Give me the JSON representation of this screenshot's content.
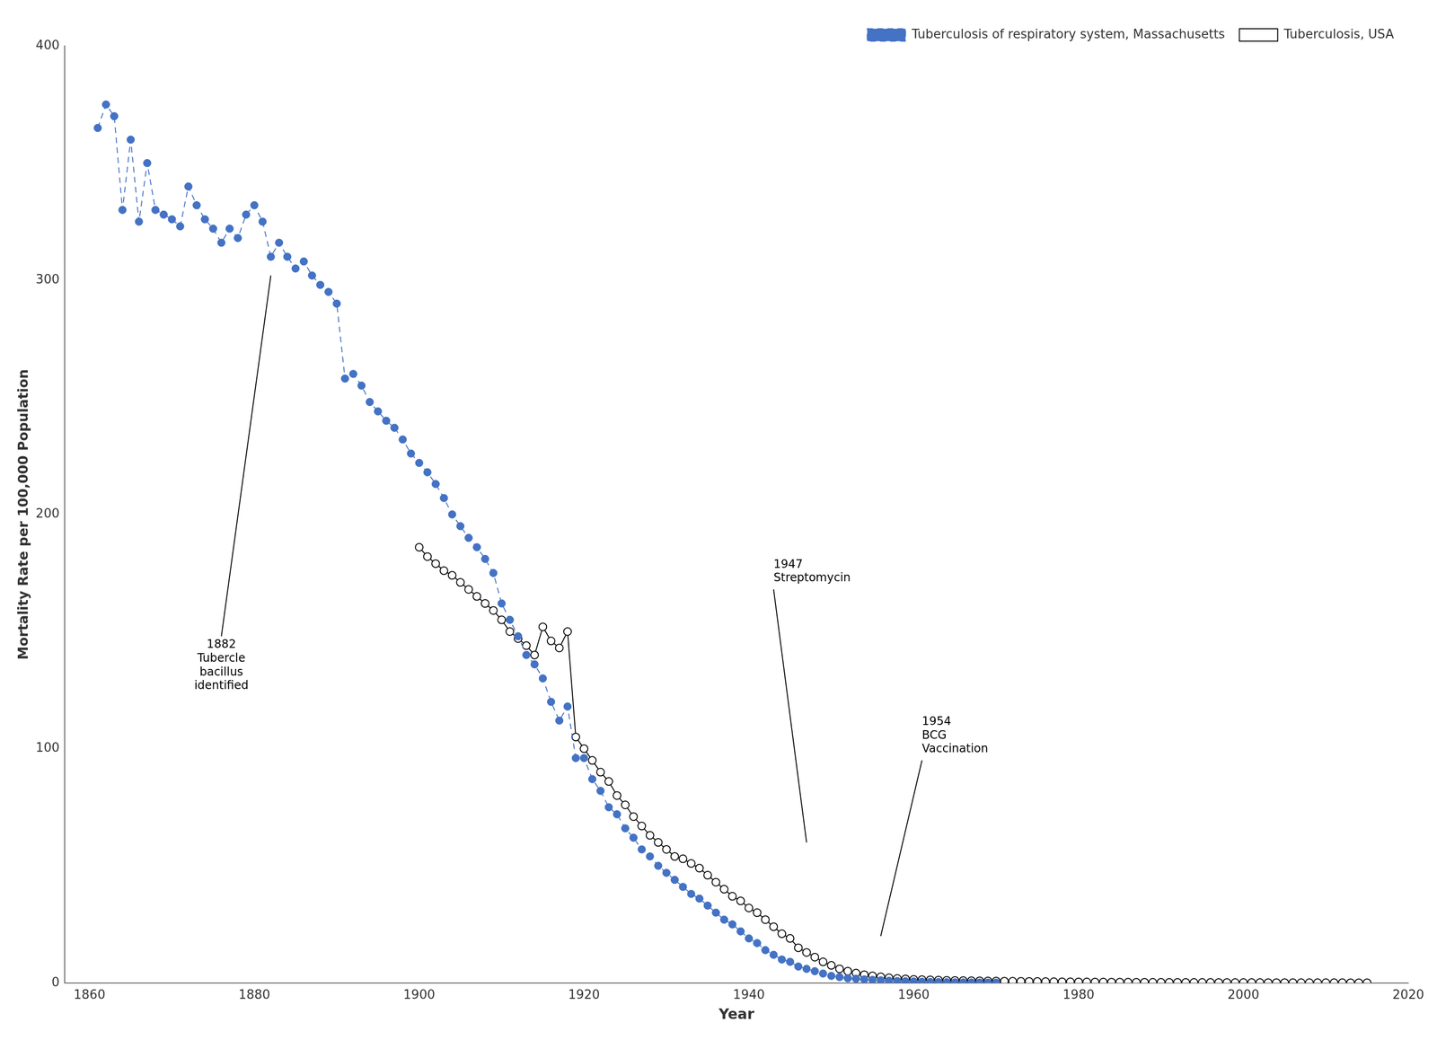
{
  "chart_data": {
    "type": "line",
    "xlabel": "Year",
    "ylabel": "Mortality Rate per 100,000 Population",
    "xlim": [
      1857,
      2020
    ],
    "xticks": [
      1860,
      1880,
      1900,
      1920,
      1940,
      1960,
      1980,
      2000,
      2020
    ],
    "ylim": [
      0,
      400
    ],
    "yticks": [
      0,
      100,
      200,
      300,
      400
    ],
    "grid": false,
    "legend": "upper right",
    "series": [
      {
        "name": "Tuberculosis of respiratory system, Massachusetts",
        "color": "#4472C4",
        "line_style": "dashed",
        "marker": "circle",
        "x": [
          1861,
          1862,
          1863,
          1864,
          1865,
          1866,
          1867,
          1868,
          1869,
          1870,
          1871,
          1872,
          1873,
          1874,
          1875,
          1876,
          1877,
          1878,
          1879,
          1880,
          1881,
          1882,
          1883,
          1884,
          1885,
          1886,
          1887,
          1888,
          1889,
          1890,
          1891,
          1892,
          1893,
          1894,
          1895,
          1896,
          1897,
          1898,
          1899,
          1900,
          1901,
          1902,
          1903,
          1904,
          1905,
          1906,
          1907,
          1908,
          1909,
          1910,
          1911,
          1912,
          1913,
          1914,
          1915,
          1916,
          1917,
          1918,
          1919,
          1920,
          1921,
          1922,
          1923,
          1924,
          1925,
          1926,
          1927,
          1928,
          1929,
          1930,
          1931,
          1932,
          1933,
          1934,
          1935,
          1936,
          1937,
          1938,
          1939,
          1940,
          1941,
          1942,
          1943,
          1944,
          1945,
          1946,
          1947,
          1948,
          1949,
          1950,
          1951,
          1952,
          1953,
          1954,
          1955,
          1956,
          1957,
          1958,
          1959,
          1960,
          1961,
          1962,
          1963,
          1964,
          1965,
          1966,
          1967,
          1968,
          1969,
          1970
        ],
        "values": [
          365,
          375,
          370,
          330,
          360,
          325,
          350,
          330,
          328,
          326,
          323,
          340,
          332,
          326,
          322,
          316,
          322,
          318,
          328,
          332,
          325,
          310,
          316,
          310,
          305,
          308,
          302,
          298,
          295,
          290,
          258,
          260,
          255,
          248,
          244,
          240,
          237,
          232,
          226,
          222,
          218,
          213,
          207,
          200,
          195,
          190,
          186,
          181,
          175,
          162,
          155,
          148,
          140,
          136,
          130,
          120,
          112,
          118,
          96,
          96,
          87,
          82,
          75,
          72,
          66,
          62,
          57,
          54,
          50,
          47,
          44,
          41,
          38,
          36,
          33,
          30,
          27,
          25,
          22,
          19,
          17,
          14,
          12,
          10,
          9,
          7,
          6,
          5,
          4,
          3,
          2.5,
          2,
          1.8,
          1.5,
          1.3,
          1.1,
          0.9,
          0.8,
          0.7,
          0.6,
          0.5,
          0.4,
          0.35,
          0.3,
          0.25,
          0.22,
          0.2,
          0.18,
          0.15,
          0.12
        ]
      },
      {
        "name": "Tuberculosis, USA",
        "color": "#000000",
        "line_style": "solid",
        "marker": "circle_open",
        "x": [
          1900,
          1901,
          1902,
          1903,
          1904,
          1905,
          1906,
          1907,
          1908,
          1909,
          1910,
          1911,
          1912,
          1913,
          1914,
          1915,
          1916,
          1917,
          1918,
          1919,
          1920,
          1921,
          1922,
          1923,
          1924,
          1925,
          1926,
          1927,
          1928,
          1929,
          1930,
          1931,
          1932,
          1933,
          1934,
          1935,
          1936,
          1937,
          1938,
          1939,
          1940,
          1941,
          1942,
          1943,
          1944,
          1945,
          1946,
          1947,
          1948,
          1949,
          1950,
          1951,
          1952,
          1953,
          1954,
          1955,
          1956,
          1957,
          1958,
          1959,
          1960,
          1961,
          1962,
          1963,
          1964,
          1965,
          1966,
          1967,
          1968,
          1969,
          1970,
          1971,
          1972,
          1973,
          1974,
          1975,
          1976,
          1977,
          1978,
          1979,
          1980,
          1981,
          1982,
          1983,
          1984,
          1985,
          1986,
          1987,
          1988,
          1989,
          1990,
          1991,
          1992,
          1993,
          1994,
          1995,
          1996,
          1997,
          1998,
          1999,
          2000,
          2001,
          2002,
          2003,
          2004,
          2005,
          2006,
          2007,
          2008,
          2009,
          2010,
          2011,
          2012,
          2013,
          2014,
          2015
        ],
        "values": [
          186,
          182,
          179,
          176,
          174,
          171,
          168,
          165,
          162,
          159,
          155,
          150,
          147,
          144,
          140,
          152,
          146,
          143,
          150,
          105,
          100,
          95,
          90,
          86,
          80,
          76,
          71,
          67,
          63,
          60,
          57,
          54,
          53,
          51,
          49,
          46,
          43,
          40,
          37,
          35,
          32,
          30,
          27,
          24,
          21,
          19,
          15,
          13,
          11,
          9,
          7.5,
          6,
          5,
          4.2,
          3.5,
          3.0,
          2.6,
          2.2,
          1.9,
          1.7,
          1.5,
          1.4,
          1.3,
          1.2,
          1.1,
          1.05,
          1.0,
          0.95,
          0.9,
          0.85,
          0.8,
          0.75,
          0.72,
          0.68,
          0.64,
          0.6,
          0.56,
          0.52,
          0.49,
          0.46,
          0.43,
          0.41,
          0.38,
          0.36,
          0.34,
          0.32,
          0.3,
          0.28,
          0.27,
          0.26,
          0.25,
          0.24,
          0.23,
          0.22,
          0.21,
          0.2,
          0.19,
          0.18,
          0.17,
          0.16,
          0.15,
          0.14,
          0.14,
          0.13,
          0.13,
          0.12,
          0.12,
          0.11,
          0.11,
          0.1,
          0.1,
          0.09,
          0.09,
          0.08,
          0.08,
          0.07
        ]
      }
    ],
    "annotations": [
      {
        "text": "1882\nTubercle\nbacillus\nidentified",
        "x": 1882,
        "y": 302,
        "text_x": 1876,
        "text_y": 148
      },
      {
        "text": "1947\nStreptomycin",
        "x": 1947,
        "y": 60,
        "text_x": 1943,
        "text_y": 168
      },
      {
        "text": "1954\nBCG\nVaccination",
        "x": 1956,
        "y": 20,
        "text_x": 1961,
        "text_y": 95
      }
    ]
  }
}
